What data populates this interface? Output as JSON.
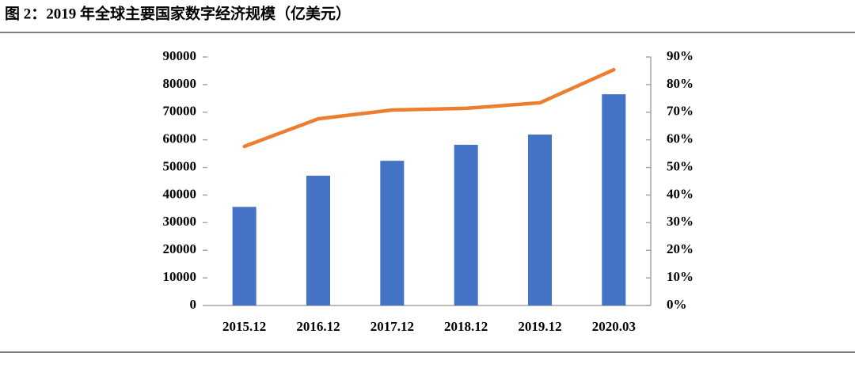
{
  "chart_data": {
    "type": "bar",
    "title": "图 2：2019 年全球主要国家数字经济规模（亿美元）",
    "categories": [
      "2015.12",
      "2016.12",
      "2017.12",
      "2018.12",
      "2019.12",
      "2020.03"
    ],
    "series": [
      {
        "type": "bar",
        "color": "#4472c4",
        "values": [
          35700,
          47000,
          52400,
          58200,
          61900,
          76500
        ]
      },
      {
        "type": "line",
        "color": "#ed7d31",
        "axis": "y2",
        "values": [
          57.6,
          67.6,
          70.8,
          71.4,
          73.4,
          85.4
        ]
      }
    ],
    "ylim": [
      0,
      90000
    ],
    "yticks": [
      0,
      10000,
      20000,
      30000,
      40000,
      50000,
      60000,
      70000,
      80000,
      90000
    ],
    "y2lim": [
      0,
      90
    ],
    "y2ticks": [
      {
        "value": 0,
        "label": "0%"
      },
      {
        "value": 10,
        "label": "10%"
      },
      {
        "value": 20,
        "label": "20%"
      },
      {
        "value": 30,
        "label": "30%"
      },
      {
        "value": 40,
        "label": "40%"
      },
      {
        "value": 50,
        "label": "50%"
      },
      {
        "value": 60,
        "label": "60%"
      },
      {
        "value": 70,
        "label": "70%"
      },
      {
        "value": 80,
        "label": "80%"
      },
      {
        "value": 90,
        "label": "90%"
      }
    ]
  }
}
